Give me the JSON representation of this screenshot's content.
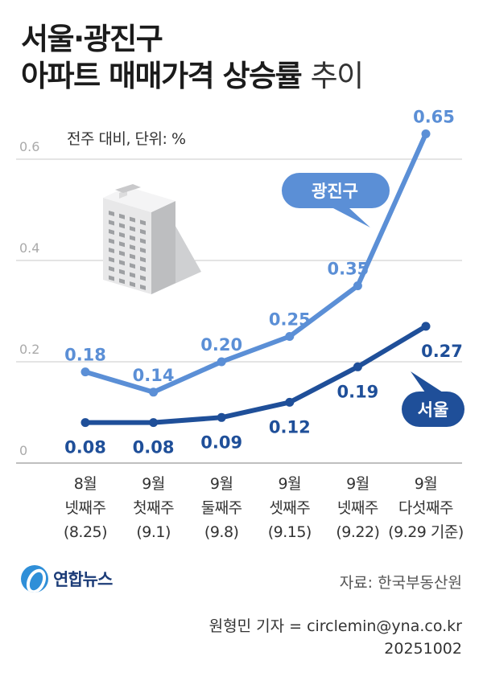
{
  "header": {
    "title_line1": "서울·광진구",
    "title_line2_bold": "아파트 매매가격 상승률",
    "title_line2_light": "추이"
  },
  "subtitle": "전주 대비, 단위: %",
  "chart_data": {
    "type": "line",
    "title": "서울·광진구 아파트 매매가격 상승률 추이",
    "subtitle": "전주 대비, 단위: %",
    "categories": [
      [
        "8월",
        "넷째주",
        "(8.25)"
      ],
      [
        "9월",
        "첫째주",
        "(9.1)"
      ],
      [
        "9월",
        "둘째주",
        "(9.8)"
      ],
      [
        "9월",
        "셋째주",
        "(9.15)"
      ],
      [
        "9월",
        "넷째주",
        "(9.22)"
      ],
      [
        "9월",
        "다섯째주",
        "(9.29 기준)"
      ]
    ],
    "y_ticks": [
      "0",
      "0.2",
      "0.4",
      "0.6"
    ],
    "ylim": [
      0,
      0.7
    ],
    "grid": true,
    "series": [
      {
        "name": "광진구",
        "color": "#5b8fd6",
        "values": [
          0.18,
          0.14,
          0.2,
          0.25,
          0.35,
          0.65
        ],
        "labels": [
          "0.18",
          "0.14",
          "0.20",
          "0.25",
          "0.35",
          "0.65"
        ]
      },
      {
        "name": "서울",
        "color": "#1f4f99",
        "values": [
          0.08,
          0.08,
          0.09,
          0.12,
          0.19,
          0.27
        ],
        "labels": [
          "0.08",
          "0.08",
          "0.09",
          "0.12",
          "0.19",
          "0.27"
        ]
      }
    ]
  },
  "footer": {
    "logo_text": "연합뉴스",
    "source": "자료: 한국부동산원",
    "reporter": "원형민 기자 = circlemin@yna.co.kr",
    "date": "20251002"
  }
}
